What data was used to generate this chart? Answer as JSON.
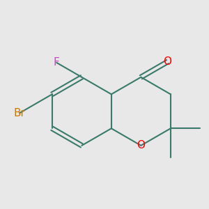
{
  "background_color": "#e8e8e8",
  "bond_color": "#3a7a6a",
  "bond_width": 1.5,
  "atom_colors": {
    "O": "#ff0000",
    "F": "#cc44cc",
    "Br": "#cc7700"
  },
  "font_size_main": 11,
  "font_size_br": 11
}
